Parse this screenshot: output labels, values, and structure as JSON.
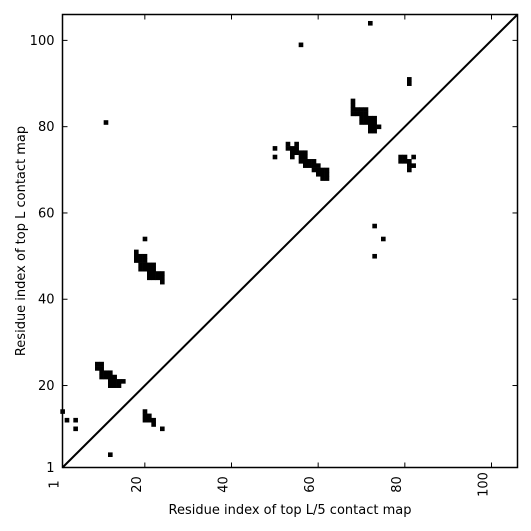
{
  "chart_data": {
    "type": "scatter",
    "xlabel": "Residue index of top L/5 contact map",
    "ylabel": "Residue index of top L contact map",
    "xlim": [
      1,
      106
    ],
    "ylim": [
      1,
      106
    ],
    "xticks": [
      1,
      20,
      40,
      60,
      80,
      100
    ],
    "yticks": [
      1,
      20,
      40,
      60,
      80,
      100
    ],
    "grid": false,
    "diagonal": {
      "from": [
        1,
        1
      ],
      "to": [
        106,
        106
      ]
    },
    "marker": "filled-square",
    "upper_triangle_points": [
      [
        72,
        104
      ],
      [
        56,
        99
      ],
      [
        81,
        91
      ],
      [
        81,
        90
      ],
      [
        11,
        81
      ],
      [
        68,
        86
      ],
      [
        68,
        85
      ],
      [
        68,
        84
      ],
      [
        69,
        84
      ],
      [
        70,
        84
      ],
      [
        71,
        84
      ],
      [
        68,
        83
      ],
      [
        69,
        83
      ],
      [
        70,
        83
      ],
      [
        71,
        83
      ],
      [
        70,
        82
      ],
      [
        71,
        82
      ],
      [
        72,
        82
      ],
      [
        73,
        82
      ],
      [
        70,
        81
      ],
      [
        71,
        81
      ],
      [
        72,
        81
      ],
      [
        73,
        81
      ],
      [
        72,
        80
      ],
      [
        73,
        80
      ],
      [
        74,
        80
      ],
      [
        72,
        79
      ],
      [
        73,
        79
      ],
      [
        50,
        75
      ],
      [
        53,
        76
      ],
      [
        55,
        76
      ],
      [
        53,
        75
      ],
      [
        54,
        75
      ],
      [
        55,
        75
      ],
      [
        54,
        74
      ],
      [
        55,
        74
      ],
      [
        56,
        74
      ],
      [
        57,
        74
      ],
      [
        50,
        73
      ],
      [
        54,
        73
      ],
      [
        56,
        73
      ],
      [
        57,
        73
      ],
      [
        56,
        72
      ],
      [
        57,
        72
      ],
      [
        58,
        72
      ],
      [
        59,
        72
      ],
      [
        57,
        71
      ],
      [
        58,
        71
      ],
      [
        59,
        71
      ],
      [
        60,
        71
      ],
      [
        59,
        70
      ],
      [
        60,
        70
      ],
      [
        61,
        70
      ],
      [
        62,
        70
      ],
      [
        60,
        69
      ],
      [
        61,
        69
      ],
      [
        62,
        69
      ],
      [
        61,
        68
      ],
      [
        62,
        68
      ],
      [
        79,
        73
      ],
      [
        80,
        73
      ],
      [
        82,
        73
      ],
      [
        79,
        72
      ],
      [
        80,
        72
      ],
      [
        81,
        72
      ],
      [
        81,
        71
      ],
      [
        82,
        71
      ],
      [
        81,
        70
      ],
      [
        73,
        57
      ],
      [
        75,
        54
      ],
      [
        73,
        50
      ],
      [
        20,
        54
      ],
      [
        18,
        51
      ],
      [
        18,
        50
      ],
      [
        19,
        50
      ],
      [
        20,
        50
      ],
      [
        18,
        49
      ],
      [
        19,
        49
      ],
      [
        20,
        49
      ],
      [
        19,
        48
      ],
      [
        20,
        48
      ],
      [
        21,
        48
      ],
      [
        22,
        48
      ],
      [
        19,
        47
      ],
      [
        20,
        47
      ],
      [
        21,
        47
      ],
      [
        22,
        47
      ],
      [
        21,
        46
      ],
      [
        22,
        46
      ],
      [
        23,
        46
      ],
      [
        24,
        46
      ],
      [
        21,
        45
      ],
      [
        22,
        45
      ],
      [
        23,
        45
      ],
      [
        24,
        45
      ],
      [
        24,
        44
      ]
    ],
    "lower_triangle_points": [
      [
        9,
        25
      ],
      [
        10,
        25
      ],
      [
        9,
        24
      ],
      [
        10,
        24
      ],
      [
        10,
        23
      ],
      [
        11,
        23
      ],
      [
        12,
        23
      ],
      [
        10,
        22
      ],
      [
        11,
        22
      ],
      [
        12,
        22
      ],
      [
        13,
        22
      ],
      [
        12,
        21
      ],
      [
        13,
        21
      ],
      [
        14,
        21
      ],
      [
        15,
        21
      ],
      [
        12,
        20
      ],
      [
        13,
        20
      ],
      [
        14,
        20
      ],
      [
        1,
        14
      ],
      [
        20,
        14
      ],
      [
        20,
        13
      ],
      [
        21,
        13
      ],
      [
        20,
        12
      ],
      [
        21,
        12
      ],
      [
        22,
        12
      ],
      [
        22,
        11
      ],
      [
        2,
        12
      ],
      [
        4,
        12
      ],
      [
        4,
        10
      ],
      [
        24,
        10
      ],
      [
        12,
        4
      ]
    ]
  }
}
